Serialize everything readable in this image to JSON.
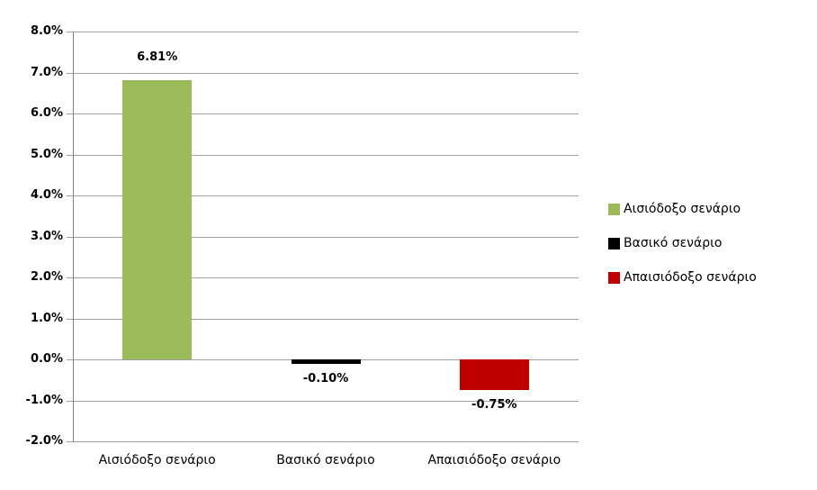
{
  "chart_data": {
    "type": "bar",
    "categories": [
      "Αισιόδοξο σενάριο",
      "Βασικό σενάριο",
      "Απαισιόδοξο σενάριο"
    ],
    "values": [
      6.81,
      -0.1,
      -0.75
    ],
    "data_labels": [
      "6.81%",
      "-0.10%",
      "-0.75%"
    ],
    "bar_colors": [
      "#9BBB59",
      "#000000",
      "#C00000"
    ],
    "title": "",
    "xlabel": "",
    "ylabel": "",
    "ylim": [
      -2.0,
      8.0
    ],
    "ytick_step": 1.0,
    "ytick_labels_top_to_bottom": [
      "8.0%",
      "7.0%",
      "6.0%",
      "5.0%",
      "4.0%",
      "3.0%",
      "2.0%",
      "1.0%",
      "0.0%",
      "-1.0%",
      "-2.0%"
    ],
    "grid": true,
    "legend": {
      "position": "right",
      "items": [
        {
          "label": "Αισιόδοξο σενάριο",
          "color": "#9BBB59"
        },
        {
          "label": "Βασικό σενάριο",
          "color": "#000000"
        },
        {
          "label": "Απαισιόδοξο σενάριο",
          "color": "#C00000"
        }
      ]
    },
    "colors": {
      "gridline": "#A0A0A0",
      "axis": "#808080",
      "background": "#FFFFFF",
      "text": "#000000"
    }
  }
}
